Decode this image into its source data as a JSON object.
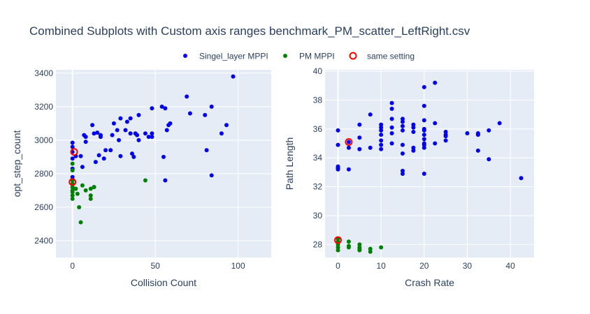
{
  "chart_data": {
    "title": "Combined Subplots with Custom axis ranges benchmark_PM_scatter_LeftRight.csv",
    "type": "scatter",
    "colors": {
      "background": "#e5ecf6",
      "series_singel": "#0000ee",
      "series_pm": "#008000",
      "same_setting": "#ff0000"
    },
    "legend": {
      "placement": "top-center",
      "items": [
        {
          "name": "Singel_layer MPPI",
          "marker": "filled-circle",
          "color": "#0000ee"
        },
        {
          "name": "PM MPPI",
          "marker": "filled-circle",
          "color": "#008000"
        },
        {
          "name": "same setting",
          "marker": "open-circle",
          "color": "#ff0000"
        }
      ]
    },
    "subplots": [
      {
        "xlabel": "Collision Count",
        "ylabel": "opt_step_count",
        "xlim": [
          -10,
          120
        ],
        "ylim": [
          2300,
          3420
        ],
        "xticks": [
          0,
          50,
          100
        ],
        "yticks": [
          2400,
          2600,
          2800,
          3000,
          3200,
          3400
        ],
        "series": [
          {
            "name": "Singel_layer MPPI",
            "points": [
              [
                0,
                2985
              ],
              [
                0,
                2960
              ],
              [
                0,
                2930
              ],
              [
                0,
                2890
              ],
              [
                0,
                2830
              ],
              [
                0,
                2780
              ],
              [
                2,
                2905
              ],
              [
                5,
                2905
              ],
              [
                6,
                2840
              ],
              [
                7,
                3030
              ],
              [
                8,
                3020
              ],
              [
                8,
                2990
              ],
              [
                12,
                3090
              ],
              [
                13,
                3040
              ],
              [
                14,
                2870
              ],
              [
                15,
                3045
              ],
              [
                16,
                2910
              ],
              [
                17,
                3030
              ],
              [
                17,
                3020
              ],
              [
                19,
                2890
              ],
              [
                20,
                2940
              ],
              [
                23,
                2940
              ],
              [
                24,
                3030
              ],
              [
                25,
                3100
              ],
              [
                27,
                3060
              ],
              [
                28,
                3000
              ],
              [
                29,
                3130
              ],
              [
                29,
                2905
              ],
              [
                32,
                3060
              ],
              [
                33,
                3110
              ],
              [
                35,
                3130
              ],
              [
                35,
                3040
              ],
              [
                36,
                2920
              ],
              [
                38,
                3040
              ],
              [
                37,
                2900
              ],
              [
                39,
                3030
              ],
              [
                40,
                3000
              ],
              [
                40,
                3150
              ],
              [
                44,
                3040
              ],
              [
                46,
                3020
              ],
              [
                48,
                3190
              ],
              [
                48,
                3040
              ],
              [
                48,
                3020
              ],
              [
                54,
                3200
              ],
              [
                55,
                2900
              ],
              [
                56,
                3190
              ],
              [
                56,
                2760
              ],
              [
                57,
                3060
              ],
              [
                58,
                3090
              ],
              [
                59,
                3100
              ],
              [
                69,
                3260
              ],
              [
                71,
                3160
              ],
              [
                80,
                3150
              ],
              [
                81,
                2940
              ],
              [
                84,
                3200
              ],
              [
                84,
                2790
              ],
              [
                90,
                3040
              ],
              [
                93,
                3090
              ],
              [
                97,
                3380
              ],
              [
                13,
                2720
              ]
            ]
          },
          {
            "name": "PM MPPI",
            "points": [
              [
                0,
                2860
              ],
              [
                0,
                2820
              ],
              [
                0,
                2760
              ],
              [
                0,
                2740
              ],
              [
                0,
                2720
              ],
              [
                0,
                2700
              ],
              [
                0,
                2690
              ],
              [
                0,
                2670
              ],
              [
                0,
                2650
              ],
              [
                2,
                2710
              ],
              [
                3,
                2680
              ],
              [
                4,
                2600
              ],
              [
                5,
                2510
              ],
              [
                6,
                2730
              ],
              [
                8,
                2700
              ],
              [
                11,
                2710
              ],
              [
                11,
                2670
              ],
              [
                11,
                2650
              ],
              [
                13,
                2720
              ],
              [
                44,
                2760
              ]
            ]
          },
          {
            "name": "same setting",
            "points": [
              [
                1,
                2930
              ],
              [
                0,
                2750
              ]
            ]
          }
        ]
      },
      {
        "xlabel": "Crash Rate",
        "ylabel": "Path Length",
        "xlim": [
          -3,
          45.5
        ],
        "ylim": [
          27.1,
          40.1
        ],
        "xticks": [
          0,
          10,
          20,
          30,
          40
        ],
        "yticks": [
          28,
          30,
          32,
          34,
          36,
          38,
          40
        ],
        "series": [
          {
            "name": "Singel_layer MPPI",
            "points": [
              [
                0,
                35.9
              ],
              [
                0,
                34.9
              ],
              [
                0,
                33.4
              ],
              [
                0,
                33.3
              ],
              [
                0,
                33.2
              ],
              [
                2.5,
                34.7
              ],
              [
                2.5,
                33.2
              ],
              [
                2.5,
                35.1
              ],
              [
                5,
                35.4
              ],
              [
                5,
                34.6
              ],
              [
                5,
                36.3
              ],
              [
                7.5,
                37.0
              ],
              [
                7.5,
                34.7
              ],
              [
                10,
                36.3
              ],
              [
                10,
                36.1
              ],
              [
                10,
                35.9
              ],
              [
                10,
                35.6
              ],
              [
                10,
                35.2
              ],
              [
                10,
                34.9
              ],
              [
                10,
                34.6
              ],
              [
                12.5,
                37.8
              ],
              [
                12.5,
                37.4
              ],
              [
                12.5,
                36.7
              ],
              [
                12.5,
                36.1
              ],
              [
                12.5,
                35.7
              ],
              [
                12.5,
                35.0
              ],
              [
                15,
                36.7
              ],
              [
                15,
                36.5
              ],
              [
                15,
                36.2
              ],
              [
                15,
                35.9
              ],
              [
                15,
                34.9
              ],
              [
                15,
                34.3
              ],
              [
                15,
                33.1
              ],
              [
                15,
                32.9
              ],
              [
                17.5,
                36.3
              ],
              [
                17.5,
                36.1
              ],
              [
                17.5,
                35.8
              ],
              [
                17.5,
                34.7
              ],
              [
                17.5,
                34.5
              ],
              [
                20,
                38.9
              ],
              [
                20,
                37.6
              ],
              [
                20,
                36.6
              ],
              [
                20,
                36.0
              ],
              [
                20,
                35.9
              ],
              [
                20,
                35.6
              ],
              [
                20,
                35.3
              ],
              [
                20,
                35.0
              ],
              [
                20,
                34.9
              ],
              [
                20,
                34.7
              ],
              [
                20,
                32.9
              ],
              [
                22.5,
                39.2
              ],
              [
                22.5,
                36.4
              ],
              [
                22.5,
                35.0
              ],
              [
                25,
                35.8
              ],
              [
                25,
                35.6
              ],
              [
                25,
                35.5
              ],
              [
                25,
                35.2
              ],
              [
                30,
                35.7
              ],
              [
                32.5,
                35.7
              ],
              [
                32.5,
                35.6
              ],
              [
                32.5,
                34.5
              ],
              [
                35,
                35.9
              ],
              [
                35,
                33.9
              ],
              [
                37.5,
                36.4
              ],
              [
                42.5,
                32.6
              ]
            ]
          },
          {
            "name": "PM MPPI",
            "points": [
              [
                0,
                28.4
              ],
              [
                0,
                28.2
              ],
              [
                0,
                28.0
              ],
              [
                0,
                27.8
              ],
              [
                0,
                27.6
              ],
              [
                2.5,
                28.2
              ],
              [
                2.5,
                27.9
              ],
              [
                2.5,
                27.8
              ],
              [
                5,
                28.0
              ],
              [
                5,
                27.8
              ],
              [
                5,
                27.7
              ],
              [
                5,
                27.6
              ],
              [
                7.5,
                27.7
              ],
              [
                7.5,
                27.5
              ],
              [
                10,
                27.8
              ]
            ]
          },
          {
            "name": "same setting",
            "points": [
              [
                2.5,
                35.1
              ],
              [
                0,
                28.3
              ]
            ]
          }
        ]
      }
    ]
  }
}
